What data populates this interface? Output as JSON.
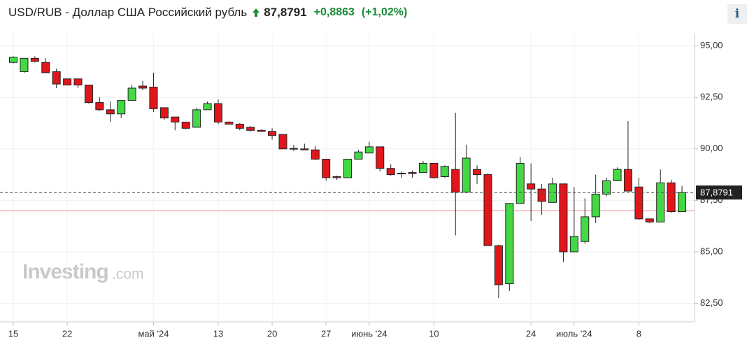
{
  "chart_data": {
    "type": "candlestick",
    "title": "USD/RUB - Доллар США Российский рубль",
    "price": {
      "value": 87.8791,
      "label": "87,8791"
    },
    "change": "+0,8863",
    "change_percent": "(+1,02%)",
    "watermark": "Investing",
    "watermark_suffix": ".com",
    "info": "i",
    "reference_line": 87.0,
    "up_color": "#44d944",
    "down_color": "#e0161b",
    "categories": [
      "15",
      null,
      null,
      null,
      null,
      "22",
      null,
      null,
      null,
      null,
      null,
      null,
      null,
      "май '24",
      null,
      null,
      null,
      null,
      null,
      "13",
      null,
      null,
      null,
      null,
      "20",
      null,
      null,
      null,
      null,
      "27",
      null,
      null,
      null,
      "июнь '24",
      null,
      null,
      null,
      null,
      null,
      "10",
      null,
      null,
      null,
      null,
      null,
      null,
      null,
      null,
      "24",
      null,
      null,
      null,
      "июль '24",
      null,
      null,
      null,
      null,
      null,
      "8",
      null,
      null,
      null,
      null
    ],
    "open": [
      94.2,
      93.75,
      94.4,
      94.2,
      93.75,
      93.4,
      93.4,
      93.1,
      92.25,
      91.9,
      91.7,
      92.35,
      93.05,
      93.0,
      92.0,
      91.55,
      91.3,
      91.05,
      91.9,
      92.2,
      91.3,
      91.2,
      91.05,
      90.9,
      90.85,
      90.7,
      90.02,
      90.0,
      89.95,
      89.5,
      88.65,
      88.6,
      89.5,
      89.8,
      90.1,
      89.05,
      88.82,
      88.85,
      88.85,
      89.3,
      88.65,
      89.0,
      87.9,
      89.0,
      88.75,
      85.3,
      83.45,
      87.35,
      88.3,
      88.05,
      87.4,
      88.3,
      85.0,
      85.5,
      86.7,
      87.8,
      88.45,
      89.0,
      88.15,
      86.6,
      86.45,
      88.35,
      86.95
    ],
    "high": [
      94.5,
      94.4,
      94.5,
      94.4,
      93.9,
      93.4,
      93.4,
      93.1,
      92.5,
      92.3,
      92.35,
      93.1,
      93.3,
      93.7,
      92.0,
      91.55,
      91.3,
      92.0,
      92.3,
      92.4,
      91.35,
      91.25,
      91.1,
      90.95,
      91.0,
      90.7,
      90.2,
      90.25,
      90.15,
      89.5,
      88.7,
      89.5,
      89.95,
      90.35,
      90.1,
      89.25,
      88.9,
      88.95,
      89.4,
      89.3,
      89.2,
      91.75,
      90.2,
      89.2,
      88.8,
      85.35,
      87.35,
      89.6,
      89.3,
      88.3,
      88.6,
      88.3,
      88.15,
      87.6,
      88.75,
      88.6,
      89.1,
      91.35,
      88.6,
      86.6,
      89.0,
      88.5,
      88.2
    ],
    "low": [
      94.15,
      93.7,
      94.2,
      93.7,
      92.95,
      93.1,
      92.95,
      92.2,
      91.85,
      91.3,
      91.5,
      92.35,
      92.85,
      91.8,
      91.4,
      90.9,
      90.95,
      91.05,
      91.9,
      91.2,
      91.2,
      90.9,
      90.85,
      90.85,
      90.45,
      90.0,
      89.9,
      89.95,
      89.45,
      88.45,
      88.5,
      88.6,
      89.5,
      89.8,
      88.9,
      88.7,
      88.6,
      88.6,
      88.85,
      88.55,
      88.6,
      85.8,
      87.9,
      88.3,
      85.3,
      82.75,
      83.1,
      87.35,
      86.5,
      86.8,
      87.4,
      84.5,
      85.0,
      85.4,
      86.4,
      87.7,
      88.45,
      87.95,
      86.55,
      86.4,
      86.45,
      86.9,
      86.95
    ],
    "close": [
      94.45,
      94.4,
      94.25,
      93.7,
      93.15,
      93.1,
      93.1,
      92.25,
      91.9,
      91.7,
      92.35,
      92.95,
      92.95,
      91.95,
      91.5,
      91.3,
      91.0,
      91.9,
      92.2,
      91.3,
      91.2,
      91.0,
      90.9,
      90.85,
      90.65,
      90.0,
      90.0,
      89.95,
      89.5,
      88.6,
      88.6,
      89.5,
      89.85,
      90.1,
      89.05,
      88.75,
      88.8,
      88.8,
      89.3,
      88.6,
      89.15,
      87.9,
      89.55,
      88.75,
      85.3,
      83.4,
      87.35,
      89.3,
      88.05,
      87.45,
      88.3,
      85.0,
      85.75,
      86.7,
      87.8,
      88.45,
      89.0,
      87.95,
      86.6,
      86.45,
      88.35,
      86.95,
      87.8791
    ],
    "ylim": [
      81.6,
      95.6
    ],
    "yticks": [
      {
        "value": 82.5,
        "label": "82,50"
      },
      {
        "value": 85,
        "label": "85,00"
      },
      {
        "value": 87.5,
        "label": "87,50"
      },
      {
        "value": 90,
        "label": "90,00"
      },
      {
        "value": 92.5,
        "label": "92,50"
      },
      {
        "value": 95,
        "label": "95,00"
      }
    ],
    "grid": true
  }
}
